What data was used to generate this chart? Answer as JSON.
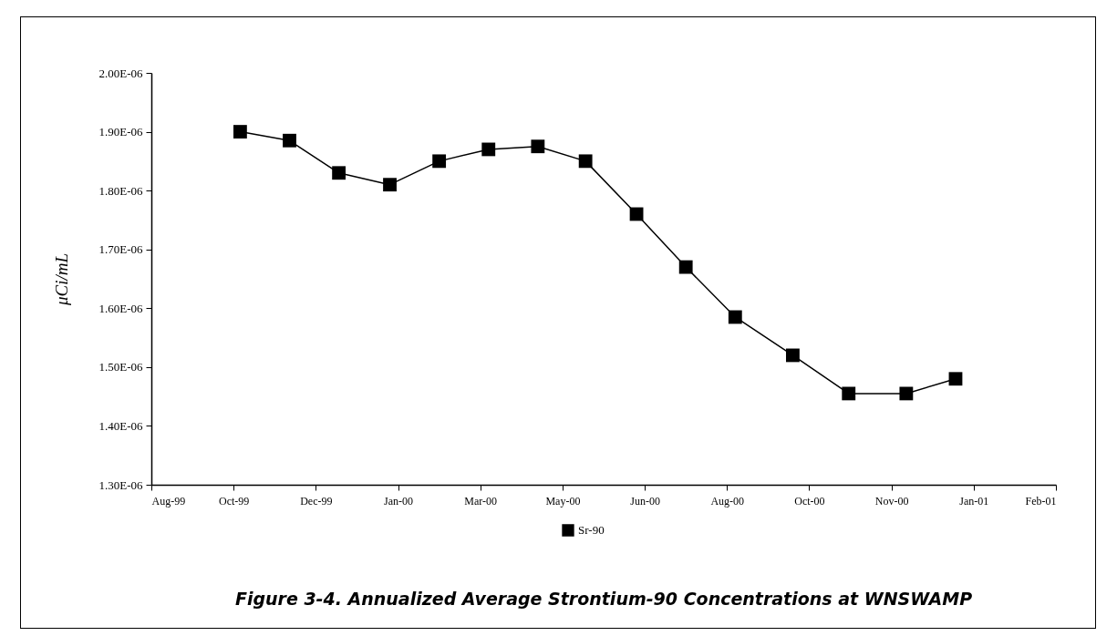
{
  "chart_data": {
    "type": "line",
    "title": "Figure 3-4. Annualized Average Strontium-90 Concentrations at WNSWAMP",
    "ylabel": "μCi/mL",
    "x": [
      "1999-10-21",
      "1999-11-20",
      "1999-12-20",
      "2000-01-20",
      "2000-02-19",
      "2000-03-20",
      "2000-04-19",
      "2000-05-18",
      "2000-06-18",
      "2000-07-18",
      "2000-08-17",
      "2000-09-21",
      "2000-10-25",
      "2000-11-29",
      "2000-12-29"
    ],
    "series": [
      {
        "name": "Sr-90",
        "color": "#000000",
        "values": [
          1.9e-06,
          1.885e-06,
          1.83e-06,
          1.81e-06,
          1.85e-06,
          1.87e-06,
          1.875e-06,
          1.85e-06,
          1.76e-06,
          1.67e-06,
          1.585e-06,
          1.52e-06,
          1.455e-06,
          1.455e-06,
          1.48e-06
        ]
      }
    ],
    "xlim": [
      "1999-08-28",
      "2001-02-28"
    ],
    "xticks": [
      {
        "value": "1999-08-28",
        "label": "Aug-99"
      },
      {
        "value": "1999-10-17",
        "label": "Oct-99"
      },
      {
        "value": "1999-12-06",
        "label": "Dec-99"
      },
      {
        "value": "2000-01-25",
        "label": "Jan-00"
      },
      {
        "value": "2000-03-15",
        "label": "Mar-00"
      },
      {
        "value": "2000-05-04",
        "label": "May-00"
      },
      {
        "value": "2000-06-23",
        "label": "Jun-00"
      },
      {
        "value": "2000-08-12",
        "label": "Aug-00"
      },
      {
        "value": "2000-10-01",
        "label": "Oct-00"
      },
      {
        "value": "2000-11-20",
        "label": "Nov-00"
      },
      {
        "value": "2001-01-09",
        "label": "Jan-01"
      },
      {
        "value": "2001-02-28",
        "label": "Feb-01"
      }
    ],
    "ylim": [
      1.3e-06,
      2e-06
    ],
    "yticks": [
      {
        "value": 1.3e-06,
        "label": "1.30E-06"
      },
      {
        "value": 1.4e-06,
        "label": "1.40E-06"
      },
      {
        "value": 1.5e-06,
        "label": "1.50E-06"
      },
      {
        "value": 1.6e-06,
        "label": "1.60E-06"
      },
      {
        "value": 1.7e-06,
        "label": "1.70E-06"
      },
      {
        "value": 1.8e-06,
        "label": "1.80E-06"
      },
      {
        "value": 1.9e-06,
        "label": "1.90E-06"
      },
      {
        "value": 2e-06,
        "label": "2.00E-06"
      }
    ],
    "grid": false,
    "legend": "bottom",
    "marker": "square",
    "line_style": "solid"
  }
}
